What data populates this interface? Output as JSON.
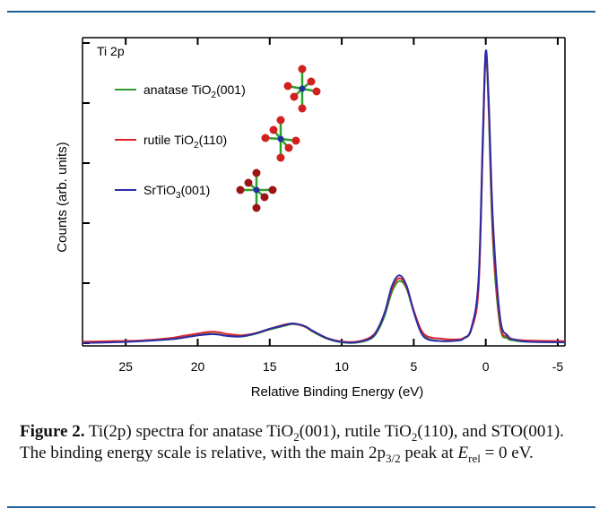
{
  "chart_data": {
    "type": "line",
    "panel_label": "Ti 2p",
    "xlabel": "Relative  Binding Energy (eV)",
    "ylabel": "Counts (arb. units)",
    "x_reversed": true,
    "xlim": [
      28,
      -5.5
    ],
    "ylim": [
      0,
      1.04
    ],
    "xticks": [
      25,
      20,
      15,
      10,
      5,
      0,
      -5
    ],
    "xtick_labels": [
      "25",
      "20",
      "15",
      "10",
      "5",
      "0",
      "-5"
    ],
    "series": [
      {
        "name": "anatase TiO2(001)",
        "label_main": "anatase TiO",
        "label_sub": "2",
        "label_end": "(001)",
        "color": "#2a9a2a",
        "x": [
          28,
          26,
          24,
          22,
          21,
          20,
          19.5,
          19,
          18.5,
          18,
          17,
          16,
          15,
          14,
          13.5,
          13,
          12.5,
          12,
          11,
          10,
          9,
          8,
          7.5,
          7,
          6.5,
          6,
          5.5,
          5,
          4.5,
          4,
          3,
          2,
          1.5,
          1,
          0.5,
          0.2,
          0,
          -0.2,
          -0.5,
          -1,
          -1.5,
          -2,
          -3,
          -5.5
        ],
        "y": [
          0.005,
          0.008,
          0.01,
          0.016,
          0.022,
          0.03,
          0.034,
          0.035,
          0.033,
          0.028,
          0.026,
          0.035,
          0.05,
          0.062,
          0.068,
          0.066,
          0.058,
          0.042,
          0.018,
          0.006,
          0.005,
          0.018,
          0.045,
          0.1,
          0.18,
          0.215,
          0.19,
          0.11,
          0.045,
          0.018,
          0.01,
          0.013,
          0.02,
          0.05,
          0.2,
          0.7,
          1.0,
          0.8,
          0.35,
          0.06,
          0.02,
          0.012,
          0.008,
          0.006
        ]
      },
      {
        "name": "rutile TiO2(110)",
        "label_main": "rutile TiO",
        "label_sub": "2",
        "label_end": "(110)",
        "color": "#e0232b",
        "x": [
          28,
          26,
          24,
          22,
          21,
          20,
          19.5,
          19,
          18.5,
          18,
          17,
          16,
          15,
          14,
          13.5,
          13,
          12.5,
          12,
          11,
          10,
          9,
          8,
          7.5,
          7,
          6.5,
          6,
          5.5,
          5,
          4.5,
          4,
          3,
          2,
          1.5,
          1,
          0.5,
          0.2,
          0,
          -0.2,
          -0.5,
          -1,
          -1.5,
          -2,
          -3,
          -5.5
        ],
        "y": [
          0.008,
          0.01,
          0.012,
          0.02,
          0.028,
          0.036,
          0.04,
          0.042,
          0.04,
          0.035,
          0.03,
          0.037,
          0.052,
          0.066,
          0.07,
          0.067,
          0.058,
          0.044,
          0.02,
          0.009,
          0.008,
          0.024,
          0.052,
          0.11,
          0.19,
          0.225,
          0.195,
          0.115,
          0.05,
          0.025,
          0.018,
          0.016,
          0.022,
          0.05,
          0.19,
          0.68,
          0.99,
          0.82,
          0.38,
          0.07,
          0.025,
          0.016,
          0.012,
          0.01
        ]
      },
      {
        "name": "SrTiO3(001)",
        "label_main": "SrTiO",
        "label_sub": "3",
        "label_end": "(001)",
        "color": "#2b2ba8",
        "x": [
          28,
          26,
          24,
          22,
          21,
          20,
          19.5,
          19,
          18.5,
          18,
          17,
          16,
          15,
          14,
          13.5,
          13,
          12.5,
          12,
          11,
          10,
          9,
          8,
          7.5,
          7,
          6.5,
          6,
          5.5,
          5,
          4.5,
          4,
          3,
          2,
          1.5,
          1,
          0.5,
          0.2,
          0,
          -0.2,
          -0.5,
          -1,
          -1.5,
          -2,
          -3,
          -5.5
        ],
        "y": [
          0.004,
          0.006,
          0.01,
          0.016,
          0.022,
          0.03,
          0.032,
          0.034,
          0.032,
          0.028,
          0.026,
          0.036,
          0.052,
          0.064,
          0.07,
          0.068,
          0.06,
          0.045,
          0.02,
          0.007,
          0.006,
          0.02,
          0.05,
          0.11,
          0.2,
          0.235,
          0.2,
          0.11,
          0.04,
          0.016,
          0.01,
          0.012,
          0.02,
          0.055,
          0.22,
          0.72,
          1.0,
          0.84,
          0.42,
          0.09,
          0.03,
          0.015,
          0.008,
          0.006
        ]
      }
    ]
  },
  "caption": {
    "figure_label": "Figure 2.",
    "text_1": " Ti(2p) spectra for anatase TiO",
    "sub_1": "2",
    "text_2": "(001), rutile TiO",
    "sub_2": "2",
    "text_3": "(110), and STO(001). The binding energy scale is relative, with the main 2p",
    "sub_3": "3/2",
    "text_4": " peak at ",
    "e_symbol": "E",
    "e_sub": "rel",
    "text_5": " = 0 eV."
  },
  "colors": {
    "rule": "#1f5d95",
    "oxygen": "#d21f1f",
    "titanium": "#2330a0",
    "bond": "#2aa02a"
  }
}
